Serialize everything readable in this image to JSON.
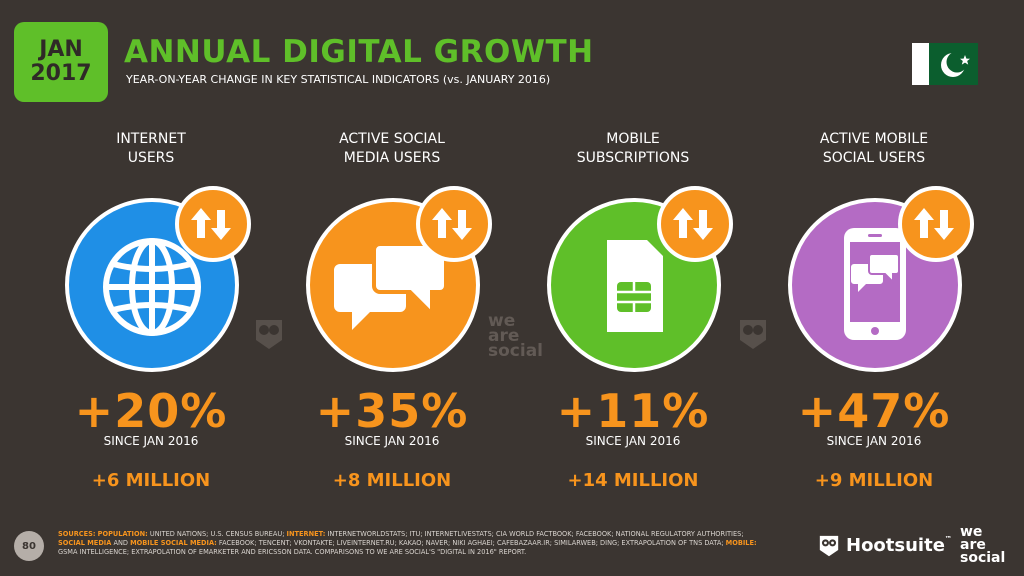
{
  "header": {
    "month": "JAN",
    "year": "2017",
    "title": "ANNUAL DIGITAL GROWTH",
    "subtitle": "YEAR-ON-YEAR CHANGE IN KEY STATISTICAL INDICATORS (vs. JANUARY 2016)",
    "flag_icon": "pakistan-flag-icon"
  },
  "colors": {
    "accent": "#5fbf29",
    "background": "#3b3531",
    "highlight": "#f7941d",
    "internet": "#1f8fe6",
    "social": "#f7941d",
    "mobile": "#5fbf29",
    "mobile_social": "#b46bc4"
  },
  "stats": [
    {
      "label_line1": "INTERNET",
      "label_line2": "USERS",
      "icon": "globe-icon",
      "change": "+20%",
      "since": "SINCE JAN 2016",
      "absolute": "+6 MILLION"
    },
    {
      "label_line1": "ACTIVE SOCIAL",
      "label_line2": "MEDIA USERS",
      "icon": "chat-bubbles-icon",
      "change": "+35%",
      "since": "SINCE JAN 2016",
      "absolute": "+8 MILLION"
    },
    {
      "label_line1": "MOBILE",
      "label_line2": "SUBSCRIPTIONS",
      "icon": "sim-card-icon",
      "change": "+11%",
      "since": "SINCE JAN 2016",
      "absolute": "+14 MILLION"
    },
    {
      "label_line1": "ACTIVE MOBILE",
      "label_line2": "SOCIAL USERS",
      "icon": "mobile-chat-icon",
      "change": "+47%",
      "since": "SINCE JAN 2016",
      "absolute": "+9 MILLION"
    }
  ],
  "watermark": {
    "line1": "we",
    "line2": "are",
    "line3": "social"
  },
  "footer": {
    "page_number": "80",
    "sources_label": "SOURCES:",
    "population_label": "POPULATION:",
    "population_text": " UNITED NATIONS; U.S. CENSUS BUREAU; ",
    "internet_label": "INTERNET:",
    "internet_text": " INTERNETWORLDSTATS; ITU; INTERNETLIVESTATS; CIA WORLD FACTBOOK; FACEBOOK; NATIONAL REGULATORY AUTHORITIES; ",
    "social_label": "SOCIAL MEDIA",
    "and_text": " AND ",
    "mobile_social_label": "MOBILE SOCIAL MEDIA:",
    "social_text": " FACEBOOK; TENCENT; VKONTAKTE; LIVEINTERNET.RU; KAKAO; NAVER; NIKI AGHAEI; CAFEBAZAAR.IR; SIMILARWEB; DING; EXTRAPOLATION OF TNS DATA; ",
    "mobile_label": "MOBILE:",
    "mobile_text": " GSMA INTELLIGENCE; EXTRAPOLATION OF EMARKETER AND ERICSSON DATA. COMPARISONS TO WE ARE SOCIAL'S \"DIGITAL IN 2016\" REPORT.",
    "hootsuite": "Hootsuite",
    "tm": "™",
    "was_line1": "we",
    "was_line2": "are",
    "was_line3": "social"
  }
}
